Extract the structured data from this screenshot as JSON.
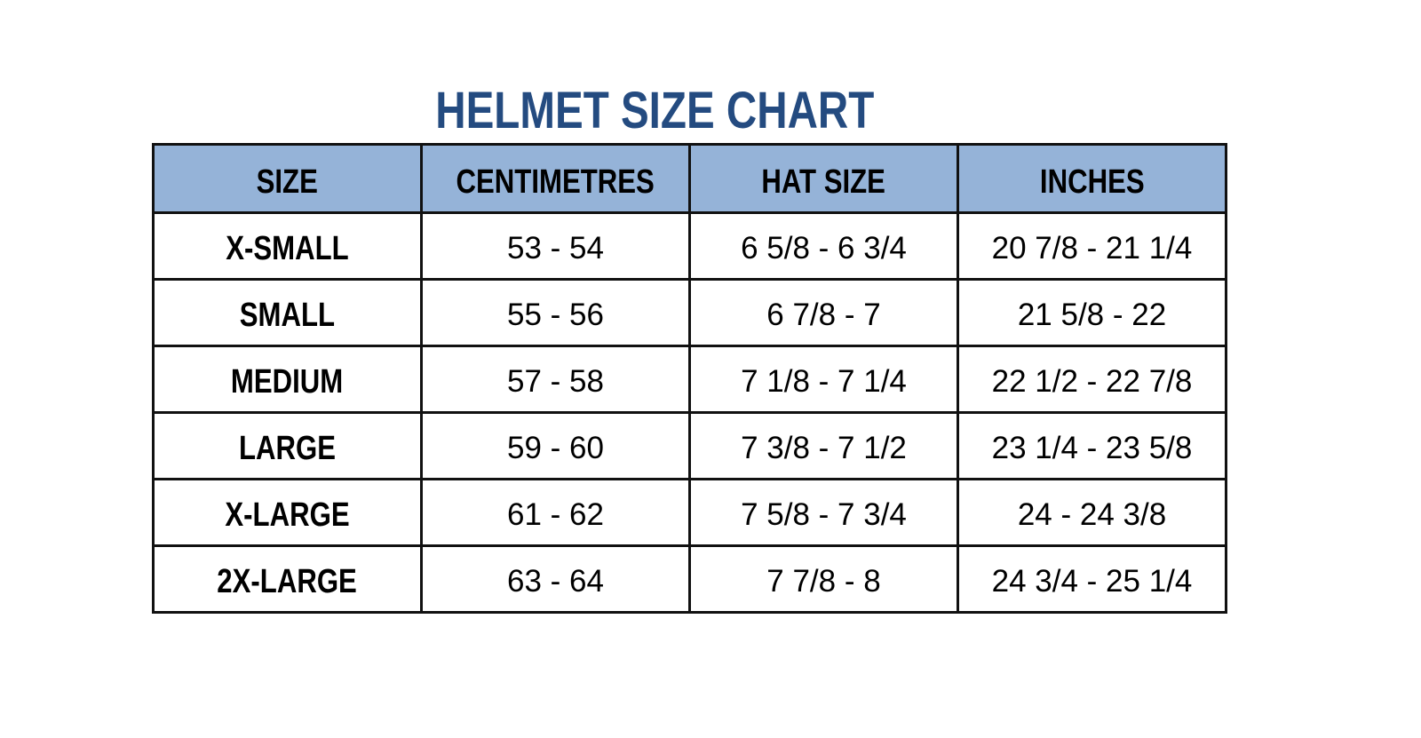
{
  "colors": {
    "title": "#244b80",
    "header_bg": "#95b3d8",
    "border": "#111111"
  },
  "chart_data": {
    "type": "table",
    "title": "HELMET SIZE CHART",
    "columns": [
      "SIZE",
      "CENTIMETRES",
      "HAT SIZE",
      "INCHES"
    ],
    "rows": [
      [
        "X-SMALL",
        "53 - 54",
        "6 5/8 - 6 3/4",
        "20 7/8 - 21 1/4"
      ],
      [
        "SMALL",
        "55 - 56",
        "6 7/8 - 7",
        "21 5/8 - 22"
      ],
      [
        "MEDIUM",
        "57 - 58",
        "7 1/8 - 7 1/4",
        "22 1/2 - 22 7/8"
      ],
      [
        "LARGE",
        "59 - 60",
        "7 3/8 - 7 1/2",
        "23 1/4 - 23 5/8"
      ],
      [
        "X-LARGE",
        "61 - 62",
        "7 5/8 - 7 3/4",
        "24 - 24 3/8"
      ],
      [
        "2X-LARGE",
        "63 - 64",
        "7 7/8 - 8",
        "24 3/4 - 25 1/4"
      ]
    ]
  }
}
